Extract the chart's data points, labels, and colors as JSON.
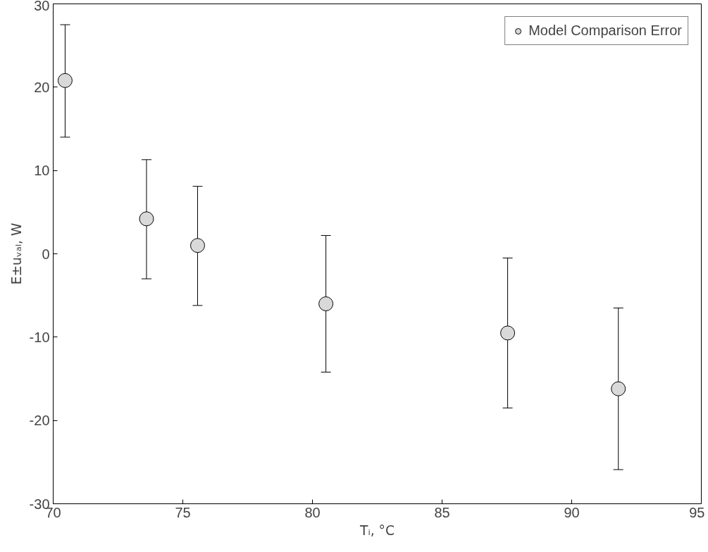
{
  "chart_data": {
    "type": "scatter",
    "xlabel": "Tᵢ, °C",
    "ylabel": "E±uᵥₐₗ, W",
    "x": [
      70.46,
      73.6,
      75.57,
      80.52,
      87.53,
      91.8
    ],
    "series": [
      {
        "name": "Model Comparison Error",
        "color": "#d9d9d9",
        "values": [
          20.8,
          4.2,
          1.0,
          -6.0,
          -9.5,
          -16.2
        ],
        "errors": [
          [
            14.0,
            27.5
          ],
          [
            -3.0,
            11.3
          ],
          [
            -6.2,
            8.1
          ],
          [
            -14.2,
            2.2
          ],
          [
            -18.5,
            -0.5
          ],
          [
            -25.9,
            -6.5
          ]
        ]
      }
    ],
    "xlim": [
      70,
      95
    ],
    "xticks": [
      70,
      75,
      80,
      85,
      90,
      95
    ],
    "ylim": [
      -30,
      30
    ],
    "yticks": [
      -30,
      -20,
      -10,
      0,
      10,
      20,
      30
    ],
    "marker": "circle",
    "grid": false,
    "legend": "top right"
  }
}
